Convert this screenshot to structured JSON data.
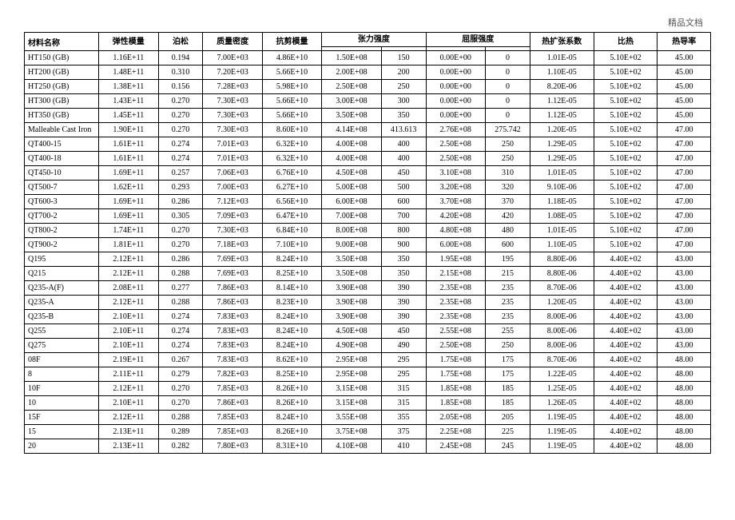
{
  "watermark": "精品文档",
  "headers": {
    "name": "材料名称",
    "elastic_modulus": "弹性模量",
    "poisson": "泊松",
    "density": "质量密度",
    "shear_modulus": "抗剪模量",
    "tensile_strength": "张力强度",
    "yield_strength": "屈服强度",
    "thermal_expansion": "热扩张系数",
    "specific_heat": "比热",
    "thermal_conductivity": "热导率"
  },
  "rows": [
    {
      "name": "HT150 (GB)",
      "em": "1.16E+11",
      "pr": "0.194",
      "den": "7.00E+03",
      "sm": "4.86E+10",
      "ts1": "1.50E+08",
      "ts2": "150",
      "ys1": "0.00E+00",
      "ys2": "0",
      "te": "1.01E-05",
      "sh": "5.10E+02",
      "tc": "45.00"
    },
    {
      "name": "HT200 (GB)",
      "em": "1.48E+11",
      "pr": "0.310",
      "den": "7.20E+03",
      "sm": "5.66E+10",
      "ts1": "2.00E+08",
      "ts2": "200",
      "ys1": "0.00E+00",
      "ys2": "0",
      "te": "1.10E-05",
      "sh": "5.10E+02",
      "tc": "45.00"
    },
    {
      "name": "HT250 (GB)",
      "em": "1.38E+11",
      "pr": "0.156",
      "den": "7.28E+03",
      "sm": "5.98E+10",
      "ts1": "2.50E+08",
      "ts2": "250",
      "ys1": "0.00E+00",
      "ys2": "0",
      "te": "8.20E-06",
      "sh": "5.10E+02",
      "tc": "45.00"
    },
    {
      "name": "HT300 (GB)",
      "em": "1.43E+11",
      "pr": "0.270",
      "den": "7.30E+03",
      "sm": "5.66E+10",
      "ts1": "3.00E+08",
      "ts2": "300",
      "ys1": "0.00E+00",
      "ys2": "0",
      "te": "1.12E-05",
      "sh": "5.10E+02",
      "tc": "45.00"
    },
    {
      "name": "HT350 (GB)",
      "em": "1.45E+11",
      "pr": "0.270",
      "den": "7.30E+03",
      "sm": "5.66E+10",
      "ts1": "3.50E+08",
      "ts2": "350",
      "ys1": "0.00E+00",
      "ys2": "0",
      "te": "1.12E-05",
      "sh": "5.10E+02",
      "tc": "45.00"
    },
    {
      "name": "Malleable Cast Iron",
      "em": "1.90E+11",
      "pr": "0.270",
      "den": "7.30E+03",
      "sm": "8.60E+10",
      "ts1": "4.14E+08",
      "ts2": "413.613",
      "ys1": "2.76E+08",
      "ys2": "275.742",
      "te": "1.20E-05",
      "sh": "5.10E+02",
      "tc": "47.00"
    },
    {
      "name": "QT400-15",
      "em": "1.61E+11",
      "pr": "0.274",
      "den": "7.01E+03",
      "sm": "6.32E+10",
      "ts1": "4.00E+08",
      "ts2": "400",
      "ys1": "2.50E+08",
      "ys2": "250",
      "te": "1.29E-05",
      "sh": "5.10E+02",
      "tc": "47.00"
    },
    {
      "name": "QT400-18",
      "em": "1.61E+11",
      "pr": "0.274",
      "den": "7.01E+03",
      "sm": "6.32E+10",
      "ts1": "4.00E+08",
      "ts2": "400",
      "ys1": "2.50E+08",
      "ys2": "250",
      "te": "1.29E-05",
      "sh": "5.10E+02",
      "tc": "47.00"
    },
    {
      "name": "QT450-10",
      "em": "1.69E+11",
      "pr": "0.257",
      "den": "7.06E+03",
      "sm": "6.76E+10",
      "ts1": "4.50E+08",
      "ts2": "450",
      "ys1": "3.10E+08",
      "ys2": "310",
      "te": "1.01E-05",
      "sh": "5.10E+02",
      "tc": "47.00"
    },
    {
      "name": "QT500-7",
      "em": "1.62E+11",
      "pr": "0.293",
      "den": "7.00E+03",
      "sm": "6.27E+10",
      "ts1": "5.00E+08",
      "ts2": "500",
      "ys1": "3.20E+08",
      "ys2": "320",
      "te": "9.10E-06",
      "sh": "5.10E+02",
      "tc": "47.00"
    },
    {
      "name": "QT600-3",
      "em": "1.69E+11",
      "pr": "0.286",
      "den": "7.12E+03",
      "sm": "6.56E+10",
      "ts1": "6.00E+08",
      "ts2": "600",
      "ys1": "3.70E+08",
      "ys2": "370",
      "te": "1.18E-05",
      "sh": "5.10E+02",
      "tc": "47.00"
    },
    {
      "name": "QT700-2",
      "em": "1.69E+11",
      "pr": "0.305",
      "den": "7.09E+03",
      "sm": "6.47E+10",
      "ts1": "7.00E+08",
      "ts2": "700",
      "ys1": "4.20E+08",
      "ys2": "420",
      "te": "1.08E-05",
      "sh": "5.10E+02",
      "tc": "47.00"
    },
    {
      "name": "QT800-2",
      "em": "1.74E+11",
      "pr": "0.270",
      "den": "7.30E+03",
      "sm": "6.84E+10",
      "ts1": "8.00E+08",
      "ts2": "800",
      "ys1": "4.80E+08",
      "ys2": "480",
      "te": "1.01E-05",
      "sh": "5.10E+02",
      "tc": "47.00"
    },
    {
      "name": "QT900-2",
      "em": "1.81E+11",
      "pr": "0.270",
      "den": "7.18E+03",
      "sm": "7.10E+10",
      "ts1": "9.00E+08",
      "ts2": "900",
      "ys1": "6.00E+08",
      "ys2": "600",
      "te": "1.10E-05",
      "sh": "5.10E+02",
      "tc": "47.00"
    },
    {
      "name": "Q195",
      "em": "2.12E+11",
      "pr": "0.286",
      "den": "7.69E+03",
      "sm": "8.24E+10",
      "ts1": "3.50E+08",
      "ts2": "350",
      "ys1": "1.95E+08",
      "ys2": "195",
      "te": "8.80E-06",
      "sh": "4.40E+02",
      "tc": "43.00"
    },
    {
      "name": "Q215",
      "em": "2.12E+11",
      "pr": "0.288",
      "den": "7.69E+03",
      "sm": "8.25E+10",
      "ts1": "3.50E+08",
      "ts2": "350",
      "ys1": "2.15E+08",
      "ys2": "215",
      "te": "8.80E-06",
      "sh": "4.40E+02",
      "tc": "43.00"
    },
    {
      "name": "Q235-A(F)",
      "em": "2.08E+11",
      "pr": "0.277",
      "den": "7.86E+03",
      "sm": "8.14E+10",
      "ts1": "3.90E+08",
      "ts2": "390",
      "ys1": "2.35E+08",
      "ys2": "235",
      "te": "8.70E-06",
      "sh": "4.40E+02",
      "tc": "43.00"
    },
    {
      "name": "Q235-A",
      "em": "2.12E+11",
      "pr": "0.288",
      "den": "7.86E+03",
      "sm": "8.23E+10",
      "ts1": "3.90E+08",
      "ts2": "390",
      "ys1": "2.35E+08",
      "ys2": "235",
      "te": "1.20E-05",
      "sh": "4.40E+02",
      "tc": "43.00"
    },
    {
      "name": "Q235-B",
      "em": "2.10E+11",
      "pr": "0.274",
      "den": "7.83E+03",
      "sm": "8.24E+10",
      "ts1": "3.90E+08",
      "ts2": "390",
      "ys1": "2.35E+08",
      "ys2": "235",
      "te": "8.00E-06",
      "sh": "4.40E+02",
      "tc": "43.00"
    },
    {
      "name": "Q255",
      "em": "2.10E+11",
      "pr": "0.274",
      "den": "7.83E+03",
      "sm": "8.24E+10",
      "ts1": "4.50E+08",
      "ts2": "450",
      "ys1": "2.55E+08",
      "ys2": "255",
      "te": "8.00E-06",
      "sh": "4.40E+02",
      "tc": "43.00"
    },
    {
      "name": "Q275",
      "em": "2.10E+11",
      "pr": "0.274",
      "den": "7.83E+03",
      "sm": "8.24E+10",
      "ts1": "4.90E+08",
      "ts2": "490",
      "ys1": "2.50E+08",
      "ys2": "250",
      "te": "8.00E-06",
      "sh": "4.40E+02",
      "tc": "43.00"
    },
    {
      "name": "08F",
      "em": "2.19E+11",
      "pr": "0.267",
      "den": "7.83E+03",
      "sm": "8.62E+10",
      "ts1": "2.95E+08",
      "ts2": "295",
      "ys1": "1.75E+08",
      "ys2": "175",
      "te": "8.70E-06",
      "sh": "4.40E+02",
      "tc": "48.00"
    },
    {
      "name": "8",
      "em": "2.11E+11",
      "pr": "0.279",
      "den": "7.82E+03",
      "sm": "8.25E+10",
      "ts1": "2.95E+08",
      "ts2": "295",
      "ys1": "1.75E+08",
      "ys2": "175",
      "te": "1.22E-05",
      "sh": "4.40E+02",
      "tc": "48.00"
    },
    {
      "name": "10F",
      "em": "2.12E+11",
      "pr": "0.270",
      "den": "7.85E+03",
      "sm": "8.26E+10",
      "ts1": "3.15E+08",
      "ts2": "315",
      "ys1": "1.85E+08",
      "ys2": "185",
      "te": "1.25E-05",
      "sh": "4.40E+02",
      "tc": "48.00"
    },
    {
      "name": "10",
      "em": "2.10E+11",
      "pr": "0.270",
      "den": "7.86E+03",
      "sm": "8.26E+10",
      "ts1": "3.15E+08",
      "ts2": "315",
      "ys1": "1.85E+08",
      "ys2": "185",
      "te": "1.26E-05",
      "sh": "4.40E+02",
      "tc": "48.00"
    },
    {
      "name": "15F",
      "em": "2.12E+11",
      "pr": "0.288",
      "den": "7.85E+03",
      "sm": "8.24E+10",
      "ts1": "3.55E+08",
      "ts2": "355",
      "ys1": "2.05E+08",
      "ys2": "205",
      "te": "1.19E-05",
      "sh": "4.40E+02",
      "tc": "48.00"
    },
    {
      "name": "15",
      "em": "2.13E+11",
      "pr": "0.289",
      "den": "7.85E+03",
      "sm": "8.26E+10",
      "ts1": "3.75E+08",
      "ts2": "375",
      "ys1": "2.25E+08",
      "ys2": "225",
      "te": "1.19E-05",
      "sh": "4.40E+02",
      "tc": "48.00"
    },
    {
      "name": "20",
      "em": "2.13E+11",
      "pr": "0.282",
      "den": "7.80E+03",
      "sm": "8.31E+10",
      "ts1": "4.10E+08",
      "ts2": "410",
      "ys1": "2.45E+08",
      "ys2": "245",
      "te": "1.19E-05",
      "sh": "4.40E+02",
      "tc": "48.00"
    }
  ]
}
